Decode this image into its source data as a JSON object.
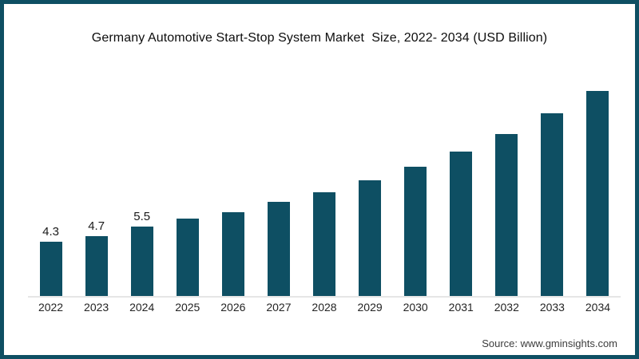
{
  "frame": {
    "border_color": "#0e4f63",
    "background": "#ffffff"
  },
  "title": "Germany Automotive Start-Stop System Market  Size, 2022- 2034 (USD Billion)",
  "source": "Source: www.gminsights.com",
  "chart_data": {
    "type": "bar",
    "title": "Germany Automotive Start-Stop System Market  Size, 2022- 2034 (USD Billion)",
    "categories": [
      "2022",
      "2023",
      "2024",
      "2025",
      "2026",
      "2027",
      "2028",
      "2029",
      "2030",
      "2031",
      "2032",
      "2033",
      "2034"
    ],
    "values": [
      4.3,
      4.7,
      5.5,
      6.1,
      6.6,
      7.4,
      8.2,
      9.1,
      10.2,
      11.4,
      12.8,
      14.4,
      16.2
    ],
    "data_labels": [
      "4.3",
      "4.7",
      "5.5",
      "",
      "",
      "",
      "",
      "",
      "",
      "",
      "",
      "",
      ""
    ],
    "bar_color": "#0e4f63",
    "xlabel": "",
    "ylabel": "",
    "ylim": [
      0,
      18
    ],
    "grid": false,
    "legend": false,
    "legend_position": "none",
    "value_unit": "USD Billion"
  }
}
